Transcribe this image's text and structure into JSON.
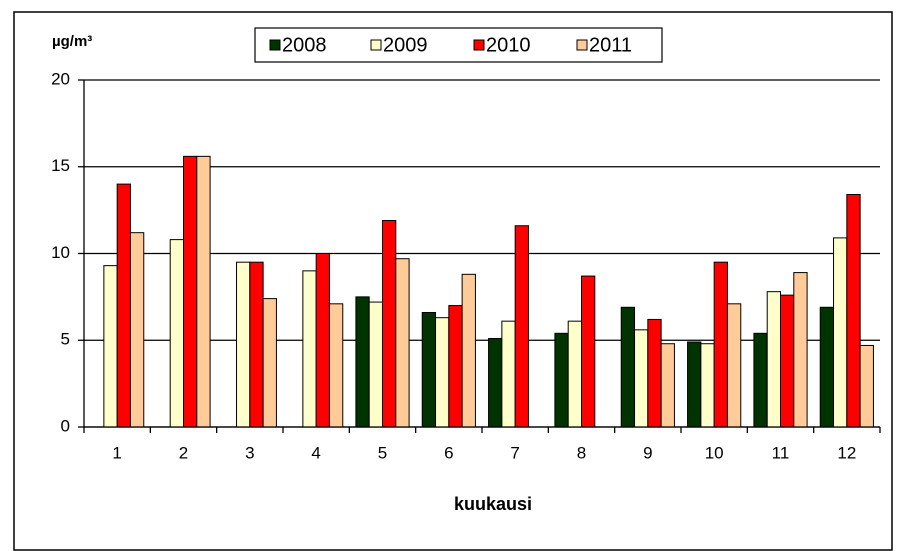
{
  "chart_data": {
    "type": "bar",
    "y_axis_label": "µg/m³",
    "x_axis_label": "kuukausi",
    "categories": [
      "1",
      "2",
      "3",
      "4",
      "5",
      "6",
      "7",
      "8",
      "9",
      "10",
      "11",
      "12"
    ],
    "series": [
      {
        "name": "2008",
        "color": "#003300",
        "values": [
          null,
          null,
          null,
          null,
          7.5,
          6.6,
          5.1,
          5.4,
          6.9,
          4.9,
          5.4,
          6.9
        ]
      },
      {
        "name": "2009",
        "color": "#ffffcc",
        "values": [
          9.3,
          10.8,
          9.5,
          9.0,
          7.2,
          6.3,
          6.1,
          6.1,
          5.6,
          4.8,
          7.8,
          10.9
        ]
      },
      {
        "name": "2010",
        "color": "#ff0000",
        "values": [
          14.0,
          15.6,
          9.5,
          10.0,
          11.9,
          7.0,
          11.6,
          8.7,
          6.2,
          9.5,
          7.6,
          13.4
        ]
      },
      {
        "name": "2011",
        "color": "#ffcc99",
        "values": [
          11.2,
          15.6,
          7.4,
          7.1,
          9.7,
          8.8,
          null,
          null,
          4.8,
          7.1,
          8.9,
          4.7
        ]
      }
    ],
    "ylim": [
      0,
      20
    ],
    "yticks": [
      0,
      5,
      10,
      15,
      20
    ],
    "grid": true,
    "legend": "top"
  }
}
